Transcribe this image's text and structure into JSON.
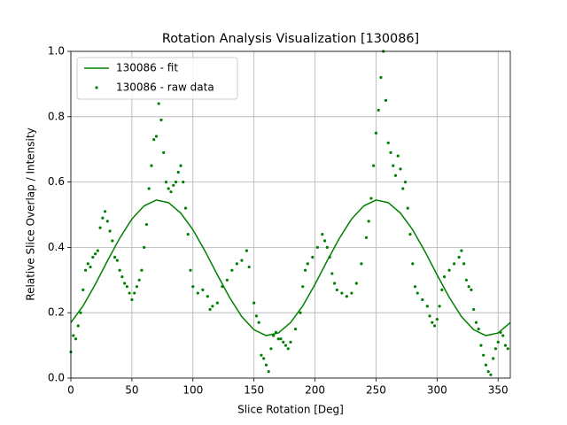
{
  "chart_data": {
    "type": "line",
    "title": "Rotation Analysis Visualization [130086]",
    "x_label": "Slice Rotation [Deg]",
    "y_label": "Relative Slice Overlap / Intensity",
    "xlim": [
      0,
      360
    ],
    "ylim": [
      0,
      1.0
    ],
    "xticks": [
      0,
      50,
      100,
      150,
      200,
      250,
      300,
      350
    ],
    "yticks": [
      {
        "value": 0,
        "label": "0.0"
      },
      0.2,
      0.4,
      0.6,
      0.8,
      {
        "value": 1,
        "label": "1.0"
      }
    ],
    "grid": true,
    "legend": "upper-left",
    "series": [
      {
        "name": "130086 - fit",
        "type": "line",
        "color": "#008000",
        "x": [
          0,
          10,
          20,
          30,
          40,
          50,
          60,
          70,
          80,
          90,
          100,
          110,
          120,
          130,
          140,
          150,
          160,
          170,
          180,
          190,
          200,
          210,
          220,
          230,
          240,
          250,
          260,
          270,
          280,
          290,
          300,
          310,
          320,
          330,
          340,
          350,
          360
        ],
        "values": [
          0.17,
          0.221,
          0.287,
          0.359,
          0.428,
          0.487,
          0.527,
          0.545,
          0.537,
          0.505,
          0.454,
          0.388,
          0.316,
          0.247,
          0.188,
          0.148,
          0.13,
          0.138,
          0.17,
          0.221,
          0.287,
          0.359,
          0.428,
          0.487,
          0.527,
          0.545,
          0.537,
          0.505,
          0.454,
          0.388,
          0.316,
          0.247,
          0.188,
          0.148,
          0.13,
          0.138,
          0.17
        ]
      },
      {
        "name": "130086 - raw data",
        "type": "scatter",
        "color": "#008000",
        "x": [
          0,
          2,
          4,
          6,
          8,
          10,
          12,
          14,
          16,
          18,
          20,
          22,
          24,
          26,
          28,
          30,
          32,
          34,
          36,
          38,
          40,
          42,
          44,
          46,
          48,
          50,
          52,
          54,
          56,
          58,
          60,
          62,
          64,
          66,
          68,
          70,
          72,
          74,
          76,
          78,
          80,
          82,
          84,
          86,
          88,
          90,
          92,
          94,
          96,
          98,
          100,
          104,
          108,
          112,
          114,
          116,
          120,
          124,
          128,
          132,
          136,
          140,
          144,
          146,
          150,
          152,
          154,
          156,
          158,
          160,
          162,
          164,
          166,
          168,
          170,
          172,
          174,
          176,
          178,
          180,
          184,
          188,
          190,
          192,
          194,
          198,
          202,
          206,
          208,
          210,
          212,
          214,
          216,
          218,
          222,
          226,
          230,
          234,
          238,
          242,
          244,
          246,
          248,
          250,
          252,
          254,
          256,
          258,
          260,
          262,
          264,
          266,
          268,
          270,
          272,
          274,
          276,
          278,
          280,
          282,
          284,
          288,
          292,
          294,
          296,
          298,
          300,
          302,
          304,
          306,
          310,
          314,
          318,
          320,
          322,
          324,
          326,
          328,
          330,
          332,
          334,
          336,
          338,
          340,
          342,
          344,
          346,
          348,
          350,
          352,
          354,
          356,
          358
        ],
        "values": [
          0.08,
          0.13,
          0.12,
          0.16,
          0.2,
          0.27,
          0.33,
          0.35,
          0.34,
          0.37,
          0.38,
          0.39,
          0.46,
          0.49,
          0.51,
          0.48,
          0.45,
          0.42,
          0.37,
          0.36,
          0.33,
          0.31,
          0.29,
          0.28,
          0.26,
          0.24,
          0.26,
          0.28,
          0.3,
          0.33,
          0.4,
          0.47,
          0.58,
          0.65,
          0.73,
          0.74,
          0.84,
          0.79,
          0.69,
          0.6,
          0.58,
          0.57,
          0.59,
          0.6,
          0.63,
          0.65,
          0.6,
          0.52,
          0.44,
          0.33,
          0.28,
          0.26,
          0.27,
          0.25,
          0.21,
          0.22,
          0.23,
          0.28,
          0.3,
          0.33,
          0.35,
          0.36,
          0.39,
          0.34,
          0.23,
          0.19,
          0.17,
          0.07,
          0.06,
          0.04,
          0.02,
          0.09,
          0.13,
          0.14,
          0.12,
          0.12,
          0.11,
          0.1,
          0.09,
          0.11,
          0.15,
          0.2,
          0.28,
          0.33,
          0.35,
          0.37,
          0.4,
          0.44,
          0.42,
          0.4,
          0.37,
          0.32,
          0.29,
          0.27,
          0.26,
          0.25,
          0.26,
          0.29,
          0.35,
          0.43,
          0.48,
          0.55,
          0.65,
          0.75,
          0.82,
          0.92,
          1.0,
          0.85,
          0.72,
          0.69,
          0.65,
          0.62,
          0.68,
          0.64,
          0.58,
          0.6,
          0.52,
          0.44,
          0.35,
          0.28,
          0.26,
          0.24,
          0.22,
          0.19,
          0.17,
          0.16,
          0.18,
          0.22,
          0.27,
          0.31,
          0.33,
          0.35,
          0.37,
          0.39,
          0.35,
          0.3,
          0.28,
          0.27,
          0.21,
          0.17,
          0.15,
          0.1,
          0.07,
          0.04,
          0.02,
          0.01,
          0.06,
          0.09,
          0.11,
          0.14,
          0.13,
          0.1,
          0.09
        ]
      }
    ]
  }
}
